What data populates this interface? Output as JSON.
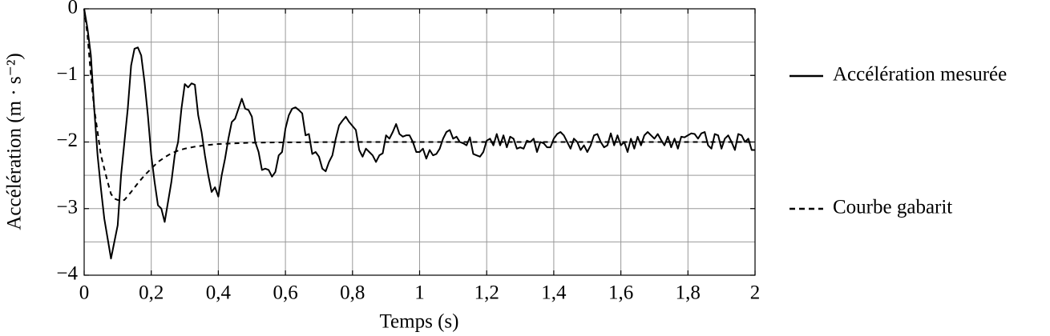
{
  "chart_data": {
    "type": "line",
    "xlabel": "Temps (s)",
    "ylabel": "Accélération (m · s⁻²)",
    "xlim": [
      0,
      2
    ],
    "ylim": [
      -4,
      0
    ],
    "xticks": [
      0,
      {
        "value": 0.2,
        "label": "0,2"
      },
      {
        "value": 0.4,
        "label": "0,4"
      },
      {
        "value": 0.6,
        "label": "0,6"
      },
      {
        "value": 0.8,
        "label": "0,8"
      },
      1,
      {
        "value": 1.2,
        "label": "1,2"
      },
      {
        "value": 1.4,
        "label": "1,4"
      },
      {
        "value": 1.6,
        "label": "1,6"
      },
      {
        "value": 1.8,
        "label": "1,8"
      },
      2
    ],
    "yticks": [
      {
        "value": -4,
        "label": "−4"
      },
      {
        "value": -3,
        "label": "−3"
      },
      {
        "value": -2,
        "label": "−2"
      },
      {
        "value": -1,
        "label": "−1"
      },
      0
    ],
    "ygrid_minor": [
      -3.5,
      -2.5,
      -1.5,
      -0.5
    ],
    "grid": true,
    "legend": "right",
    "series": [
      {
        "name": "Accélération mesurée",
        "color": "#000000",
        "style": "solid",
        "x": [
          0,
          0.01,
          0.02,
          0.03,
          0.04,
          0.05,
          0.06,
          0.07,
          0.08,
          0.09,
          0.1,
          0.11,
          0.12,
          0.13,
          0.14,
          0.15,
          0.16,
          0.17,
          0.18,
          0.19,
          0.2,
          0.21,
          0.22,
          0.23,
          0.24,
          0.25,
          0.26,
          0.27,
          0.28,
          0.29,
          0.3,
          0.31,
          0.32,
          0.33,
          0.34,
          0.35,
          0.36,
          0.37,
          0.38,
          0.39,
          0.4,
          0.41,
          0.42,
          0.43,
          0.44,
          0.45,
          0.46,
          0.47,
          0.48,
          0.49,
          0.5,
          0.51,
          0.52,
          0.53,
          0.54,
          0.55,
          0.56,
          0.57,
          0.58,
          0.59,
          0.6,
          0.61,
          0.62,
          0.63,
          0.64,
          0.65,
          0.66,
          0.67,
          0.68,
          0.69,
          0.7,
          0.71,
          0.72,
          0.73,
          0.74,
          0.75,
          0.76,
          0.77,
          0.78,
          0.79,
          0.8,
          0.81,
          0.82,
          0.83,
          0.84,
          0.85,
          0.86,
          0.87,
          0.88,
          0.89,
          0.9,
          0.91,
          0.92,
          0.93,
          0.94,
          0.95,
          0.96,
          0.97,
          0.98,
          0.99,
          1,
          1.01,
          1.02,
          1.03,
          1.04,
          1.05,
          1.06,
          1.07,
          1.08,
          1.09,
          1.1,
          1.11,
          1.12,
          1.13,
          1.14,
          1.15,
          1.16,
          1.17,
          1.18,
          1.19,
          1.2,
          1.21,
          1.22,
          1.23,
          1.24,
          1.25,
          1.26,
          1.27,
          1.28,
          1.29,
          1.3,
          1.31,
          1.32,
          1.33,
          1.34,
          1.35,
          1.36,
          1.37,
          1.38,
          1.39,
          1.4,
          1.41,
          1.42,
          1.43,
          1.44,
          1.45,
          1.46,
          1.47,
          1.48,
          1.49,
          1.5,
          1.51,
          1.52,
          1.53,
          1.54,
          1.55,
          1.56,
          1.57,
          1.58,
          1.59,
          1.6,
          1.61,
          1.62,
          1.63,
          1.64,
          1.65,
          1.66,
          1.67,
          1.68,
          1.69,
          1.7,
          1.71,
          1.72,
          1.73,
          1.74,
          1.75,
          1.76,
          1.77,
          1.78,
          1.79,
          1.8,
          1.81,
          1.82,
          1.83,
          1.84,
          1.85,
          1.86,
          1.87,
          1.88,
          1.89,
          1.9,
          1.91,
          1.92,
          1.93,
          1.94,
          1.95,
          1.96,
          1.97,
          1.98,
          1.99,
          2
        ],
        "values": [
          0,
          -0.3,
          -0.7,
          -1.5,
          -2.2,
          -2.7,
          -3.15,
          -3.45,
          -3.75,
          -3.5,
          -3.25,
          -2.5,
          -2.0,
          -1.5,
          -0.85,
          -0.6,
          -0.58,
          -0.7,
          -1.1,
          -1.6,
          -2.2,
          -2.6,
          -2.95,
          -3.0,
          -3.2,
          -2.9,
          -2.6,
          -2.2,
          -2.0,
          -1.5,
          -1.13,
          -1.18,
          -1.12,
          -1.14,
          -1.6,
          -1.85,
          -2.2,
          -2.5,
          -2.75,
          -2.68,
          -2.82,
          -2.5,
          -2.25,
          -1.95,
          -1.7,
          -1.65,
          -1.5,
          -1.35,
          -1.5,
          -1.52,
          -1.62,
          -2.0,
          -2.15,
          -2.42,
          -2.4,
          -2.42,
          -2.52,
          -2.45,
          -2.2,
          -2.15,
          -1.8,
          -1.6,
          -1.5,
          -1.48,
          -1.52,
          -1.57,
          -1.9,
          -1.88,
          -2.18,
          -2.15,
          -2.22,
          -2.4,
          -2.44,
          -2.3,
          -2.2,
          -1.95,
          -1.75,
          -1.68,
          -1.62,
          -1.7,
          -1.76,
          -1.82,
          -2.12,
          -2.22,
          -2.1,
          -2.15,
          -2.2,
          -2.3,
          -2.2,
          -2.17,
          -1.9,
          -1.95,
          -1.85,
          -1.73,
          -1.88,
          -1.92,
          -1.9,
          -1.9,
          -2.0,
          -2.15,
          -2.15,
          -2.1,
          -2.25,
          -2.12,
          -2.2,
          -2.18,
          -2.1,
          -1.95,
          -1.85,
          -1.82,
          -1.95,
          -1.92,
          -2.0,
          -2.02,
          -2.05,
          -1.93,
          -2.18,
          -2.2,
          -2.22,
          -2.15,
          -1.98,
          -1.95,
          -2.05,
          -1.88,
          -2.05,
          -1.9,
          -2.08,
          -1.92,
          -1.95,
          -2.1,
          -2.08,
          -2.1,
          -1.98,
          -2.0,
          -1.95,
          -2.15,
          -2.0,
          -2.02,
          -2.08,
          -2.08,
          -1.95,
          -1.88,
          -1.85,
          -1.9,
          -2.0,
          -2.1,
          -1.95,
          -2.0,
          -2.12,
          -2.05,
          -2.15,
          -2.05,
          -1.9,
          -1.88,
          -2.0,
          -2.08,
          -2.05,
          -1.87,
          -2.05,
          -1.9,
          -2.05,
          -2.0,
          -2.15,
          -1.95,
          -2.1,
          -1.92,
          -2.05,
          -1.9,
          -1.85,
          -1.9,
          -1.95,
          -1.88,
          -1.97,
          -2.05,
          -1.92,
          -2.08,
          -1.95,
          -2.1,
          -1.92,
          -1.93,
          -1.9,
          -1.87,
          -1.88,
          -1.95,
          -1.87,
          -1.85,
          -2.05,
          -2.1,
          -1.88,
          -1.9,
          -2.1,
          -1.95,
          -1.9,
          -2.0,
          -2.12,
          -1.88,
          -1.9,
          -2.0,
          -1.95,
          -2.12,
          -2.12
        ]
      },
      {
        "name": "Courbe gabarit",
        "color": "#000000",
        "style": "dashed",
        "x": [
          0,
          0.01,
          0.02,
          0.03,
          0.04,
          0.05,
          0.06,
          0.07,
          0.08,
          0.09,
          0.1,
          0.11,
          0.12,
          0.14,
          0.16,
          0.18,
          0.2,
          0.22,
          0.24,
          0.26,
          0.28,
          0.3,
          0.33,
          0.36,
          0.4,
          0.45,
          0.5,
          0.6,
          0.8,
          1,
          1.5,
          2
        ],
        "values": [
          0,
          -0.4,
          -1.0,
          -1.5,
          -1.85,
          -2.2,
          -2.4,
          -2.6,
          -2.78,
          -2.85,
          -2.87,
          -2.88,
          -2.87,
          -2.75,
          -2.62,
          -2.5,
          -2.4,
          -2.3,
          -2.23,
          -2.17,
          -2.13,
          -2.1,
          -2.07,
          -2.05,
          -2.03,
          -2.02,
          -2.01,
          -2.005,
          -2,
          -2,
          -2,
          -2
        ]
      }
    ]
  }
}
